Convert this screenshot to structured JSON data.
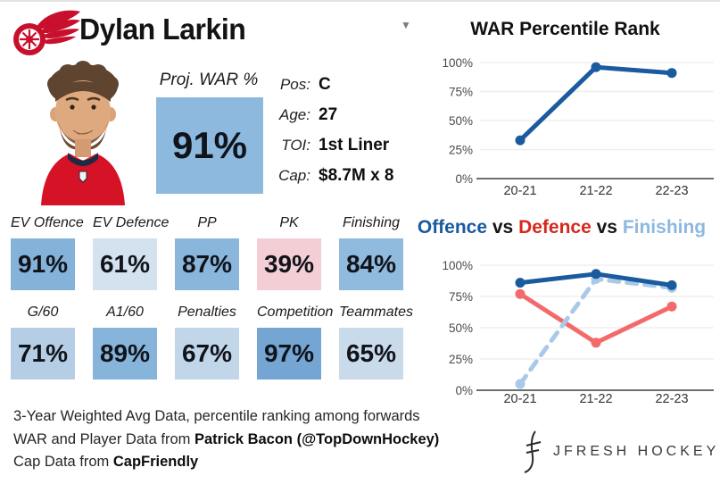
{
  "header": {
    "title": "Dylan Larkin",
    "team": "Detroit Red Wings",
    "dropdown_glyph": "▼"
  },
  "proj": {
    "label": "Proj. WAR %",
    "value": "91%",
    "box_color": "#8cb9dd"
  },
  "info": {
    "rows": [
      {
        "label": "Pos:",
        "value": "C"
      },
      {
        "label": "Age:",
        "value": "27"
      },
      {
        "label": "TOI:",
        "value": "1st Liner"
      },
      {
        "label": "Cap:",
        "value": "$8.7M x 8"
      }
    ]
  },
  "stats": {
    "row1": [
      {
        "label": "EV Offence",
        "value": "91%",
        "color": "#84b2d9"
      },
      {
        "label": "EV Defence",
        "value": "61%",
        "color": "#d4e1ee"
      },
      {
        "label": "PP",
        "value": "87%",
        "color": "#8ab6db"
      },
      {
        "label": "PK",
        "value": "39%",
        "color": "#f3ced4"
      },
      {
        "label": "Finishing",
        "value": "84%",
        "color": "#90bade"
      }
    ],
    "row2": [
      {
        "label": "G/60",
        "value": "71%",
        "color": "#b6cee5"
      },
      {
        "label": "A1/60",
        "value": "89%",
        "color": "#86b4da"
      },
      {
        "label": "Penalties",
        "value": "67%",
        "color": "#c2d6e9"
      },
      {
        "label": "Competition",
        "value": "97%",
        "color": "#74a5d3"
      },
      {
        "label": "Teammates",
        "value": "65%",
        "color": "#c9daeb"
      }
    ]
  },
  "footer": {
    "line1": "3-Year Weighted Avg Data, percentile ranking among forwards",
    "line2_prefix": "WAR and Player Data from ",
    "line2_bold": "Patrick Bacon (@TopDownHockey)",
    "line3_prefix": "Cap Data from ",
    "line3_bold": "CapFriendly"
  },
  "brand": {
    "name": "JFRESH HOCKEY"
  },
  "chart_data": [
    {
      "type": "line",
      "title": "WAR Percentile Rank",
      "x": [
        "20-21",
        "21-22",
        "22-23"
      ],
      "series": [
        {
          "name": "WAR Percentile",
          "color": "#1a5a9e",
          "dashed": false,
          "z": 1,
          "values": [
            33,
            96,
            91
          ]
        }
      ],
      "yticks": [
        0,
        25,
        50,
        75,
        100
      ],
      "ylim": [
        0,
        100
      ],
      "grid": true,
      "legend": "none"
    },
    {
      "type": "line",
      "title": "Offence vs Defence vs Finishing",
      "title_segments": [
        {
          "text": "Offence",
          "color": "#1a5a9e"
        },
        {
          "text": " vs ",
          "color": "#161616"
        },
        {
          "text": "Defence",
          "color": "#d7281e"
        },
        {
          "text": " vs ",
          "color": "#161616"
        },
        {
          "text": "Finishing",
          "color": "#8db8e2"
        }
      ],
      "x": [
        "20-21",
        "21-22",
        "22-23"
      ],
      "series": [
        {
          "name": "Offence",
          "color": "#1a5a9e",
          "dashed": false,
          "z": 3,
          "values": [
            86,
            93,
            84
          ]
        },
        {
          "name": "Defence",
          "color": "#f46a6a",
          "dashed": false,
          "z": 1,
          "values": [
            77,
            38,
            67
          ]
        },
        {
          "name": "Finishing",
          "color": "#a9c9e9",
          "dashed": true,
          "z": 2,
          "values": [
            5,
            89,
            82
          ]
        }
      ],
      "yticks": [
        0,
        25,
        50,
        75,
        100
      ],
      "ylim": [
        0,
        100
      ],
      "grid": true,
      "legend": "in-title"
    }
  ]
}
